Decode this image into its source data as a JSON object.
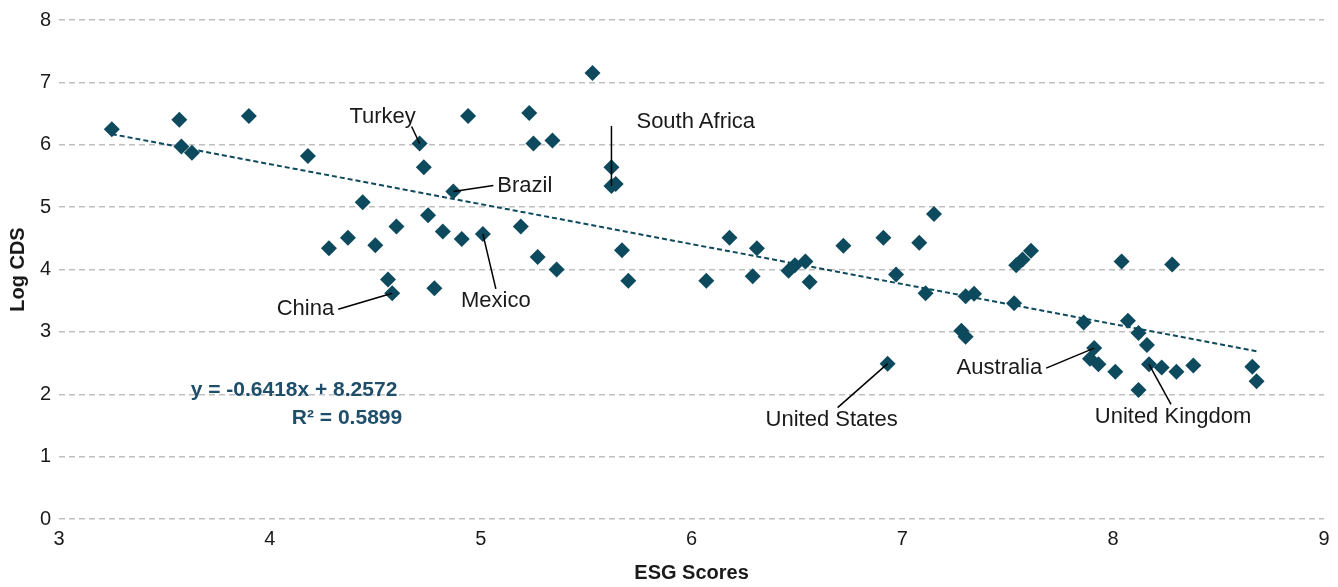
{
  "chart_data": {
    "type": "scatter",
    "xlabel": "ESG Scores",
    "ylabel": "Log CDS",
    "xlim": [
      3,
      9
    ],
    "ylim": [
      0,
      8
    ],
    "xticks": [
      3,
      4,
      5,
      6,
      7,
      8,
      9
    ],
    "yticks": [
      0,
      1,
      2,
      3,
      4,
      5,
      6,
      7,
      8
    ],
    "grid": "y",
    "legend": false,
    "marker": "diamond",
    "series": [
      {
        "color": "#0d4a5e",
        "x": [
          3.25,
          3.57,
          3.58,
          3.63,
          3.9,
          4.18,
          4.28,
          4.37,
          4.44,
          4.5,
          4.56,
          4.58,
          4.6,
          4.71,
          4.73,
          4.75,
          4.78,
          4.82,
          4.87,
          4.91,
          4.94,
          5.01,
          5.19,
          5.23,
          5.25,
          5.27,
          5.34,
          5.36,
          5.53,
          5.62,
          5.62,
          5.64,
          5.67,
          5.7,
          6.07,
          6.18,
          6.31,
          6.29,
          6.46,
          6.49,
          6.54,
          6.56,
          6.72,
          6.91,
          6.97,
          7.08,
          7.15,
          7.11,
          7.28,
          7.3,
          7.3,
          7.34,
          7.53,
          7.54,
          7.57,
          7.61,
          7.86,
          7.91,
          7.89,
          7.93,
          8.01,
          8.04,
          8.07,
          8.12,
          8.16,
          8.12,
          8.17,
          8.23,
          8.3,
          8.38,
          8.28,
          8.66,
          8.68,
          6.93
        ],
        "values": [
          6.25,
          6.4,
          5.97,
          5.87,
          6.46,
          5.82,
          4.34,
          4.51,
          5.08,
          4.39,
          3.84,
          3.62,
          4.69,
          6.02,
          5.64,
          4.87,
          3.7,
          4.61,
          5.25,
          4.49,
          6.46,
          4.57,
          4.69,
          6.51,
          6.02,
          4.2,
          6.07,
          4.0,
          7.15,
          5.64,
          5.34,
          5.37,
          4.31,
          3.82,
          3.82,
          4.51,
          4.34,
          3.89,
          3.98,
          4.07,
          4.13,
          3.8,
          4.38,
          4.51,
          3.92,
          4.43,
          4.89,
          3.62,
          3.02,
          2.92,
          3.57,
          3.61,
          3.46,
          4.07,
          4.16,
          4.3,
          3.15,
          2.74,
          2.57,
          2.48,
          2.36,
          4.13,
          3.18,
          2.98,
          2.79,
          2.07,
          2.48,
          2.43,
          2.36,
          2.46,
          4.08,
          2.44,
          2.21,
          2.49
        ]
      },
      {
        "type": "line",
        "color": "#0d4a5e",
        "line_style": "dashed",
        "marker": "none",
        "x": [
          3.25,
          8.68
        ],
        "values": [
          6.17,
          2.69
        ]
      }
    ],
    "annotations": [
      {
        "text": "Turkey",
        "x": 4.71,
        "y": 6.02
      },
      {
        "text": "Brazil",
        "x": 4.87,
        "y": 5.25
      },
      {
        "text": "South Africa",
        "x": 5.62,
        "y": 5.34
      },
      {
        "text": "China",
        "x": 4.58,
        "y": 3.62
      },
      {
        "text": "Mexico",
        "x": 5.01,
        "y": 4.57
      },
      {
        "text": "United States",
        "x": 6.93,
        "y": 2.49
      },
      {
        "text": "Australia",
        "x": 7.91,
        "y": 2.74
      },
      {
        "text": "United Kingdom",
        "x": 8.17,
        "y": 2.48
      },
      "y = -0.6418x + 8.2572",
      "R² = 0.5899"
    ]
  }
}
